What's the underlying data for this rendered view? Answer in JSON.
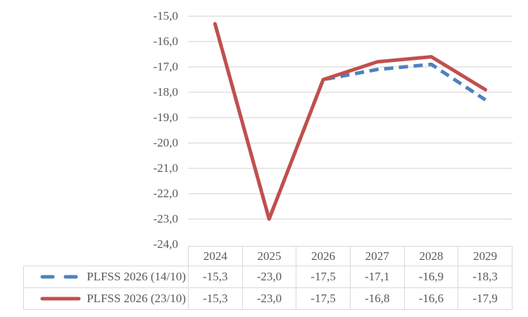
{
  "chart_data": {
    "type": "line",
    "title": "",
    "xlabel": "",
    "ylabel": "",
    "categories": [
      "2024",
      "2025",
      "2026",
      "2027",
      "2028",
      "2029"
    ],
    "series": [
      {
        "name": "PLFSS 2026 (14/10)",
        "values": [
          -15.3,
          -23.0,
          -17.5,
          -17.1,
          -16.9,
          -18.3
        ],
        "color": "#4F81BD",
        "style": "dashed"
      },
      {
        "name": "PLFSS 2026 (23/10)",
        "values": [
          -15.3,
          -23.0,
          -17.5,
          -16.8,
          -16.6,
          -17.9
        ],
        "color": "#C0504D",
        "style": "solid"
      }
    ],
    "ylim": [
      -24.0,
      -15.0
    ],
    "ytick_labels": [
      "-15,0",
      "-16,0",
      "-17,0",
      "-18,0",
      "-19,0",
      "-20,0",
      "-21,0",
      "-22,0",
      "-23,0",
      "-24,0"
    ],
    "grid": true,
    "legend_position": "table-left"
  },
  "table": {
    "header": [
      "2024",
      "2025",
      "2026",
      "2027",
      "2028",
      "2029"
    ],
    "rows": [
      {
        "legend": "PLFSS 2026 (14/10)",
        "key_style": "dashed",
        "key_color": "#4F81BD",
        "values": [
          "-15,3",
          "-23,0",
          "-17,5",
          "-17,1",
          "-16,9",
          "-18,3"
        ]
      },
      {
        "legend": "PLFSS 2026 (23/10)",
        "key_style": "solid",
        "key_color": "#C0504D",
        "values": [
          "-15,3",
          "-23,0",
          "-17,5",
          "-16,8",
          "-16,6",
          "-17,9"
        ]
      }
    ]
  },
  "colors": {
    "series_dashed": "#4F81BD",
    "series_solid": "#C0504D",
    "gridline": "#D9D9D9",
    "table_border": "#D9D9D9",
    "text": "#595959",
    "background": "#FFFFFF"
  }
}
